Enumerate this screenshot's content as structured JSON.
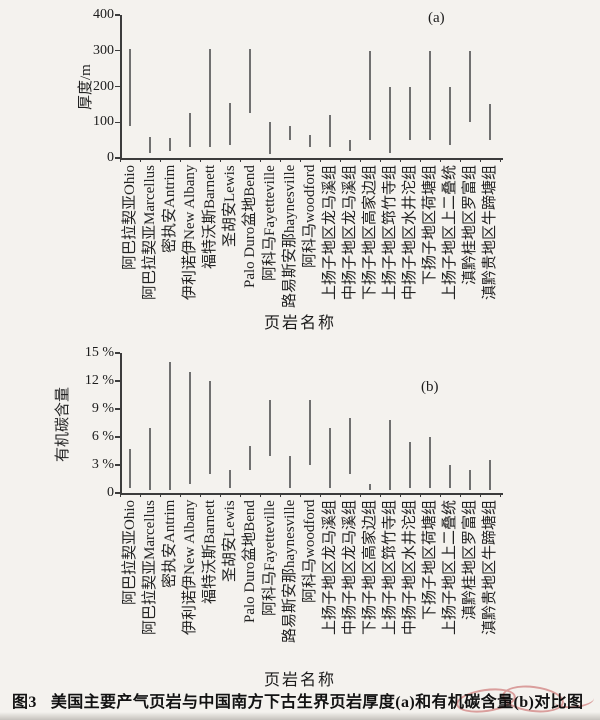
{
  "figure": {
    "caption": {
      "label": "图3",
      "text": "美国主要产气页岩与中国南方下古生界页岩厚度(a)和有机碳含量(b)对比图"
    }
  },
  "colors": {
    "bar": "#707070",
    "axis": "#3c3c3c",
    "text": "#1c1c1c",
    "background": "#f4f2ee",
    "watermark_red": "#c23b3b"
  },
  "chart_data": [
    {
      "type": "bar",
      "subtype": "floating-range-bars",
      "panel_label": "(a)",
      "ylabel": "厚度/m",
      "xlabel": "页岩名称",
      "ylim": [
        0,
        400
      ],
      "ytick_values": [
        0,
        100,
        200,
        300,
        400
      ],
      "ytick_labels": [
        "0",
        "100",
        "200",
        "300",
        "400"
      ],
      "grid": false,
      "legend": false,
      "categories": [
        "阿巴拉契亚Ohio",
        "阿巴拉契亚Marcellus",
        "密执安Antrim",
        "伊利诺伊New Albany",
        "福特沃斯Barnett",
        "圣胡安Lewis",
        "Palo Duro盆地Bend",
        "阿科马Fayetteville",
        "路易斯安那haynesville",
        "阿科马woodford",
        "上扬子地区龙马溪组",
        "中扬子地区龙马溪组",
        "下扬子地区高家边组",
        "上扬子地区筇竹寺组",
        "中扬子地区水井沱组",
        "下扬子地区荷塘组",
        "上扬子地区上二叠统",
        "滇黔桂地区罗富组",
        "滇黔贵地区牛蹄塘组"
      ],
      "ranges": [
        [
          90,
          305
        ],
        [
          15,
          60
        ],
        [
          20,
          55
        ],
        [
          30,
          125
        ],
        [
          30,
          305
        ],
        [
          35,
          155
        ],
        [
          125,
          305
        ],
        [
          10,
          100
        ],
        [
          50,
          90
        ],
        [
          30,
          65
        ],
        [
          30,
          120
        ],
        [
          20,
          50
        ],
        [
          50,
          300
        ],
        [
          15,
          200
        ],
        [
          50,
          200
        ],
        [
          50,
          300
        ],
        [
          35,
          200
        ],
        [
          100,
          300
        ],
        [
          50,
          150
        ]
      ]
    },
    {
      "type": "bar",
      "subtype": "floating-range-bars",
      "panel_label": "(b)",
      "ylabel": "有机碳含量",
      "xlabel": "页岩名称",
      "ylim": [
        0,
        15
      ],
      "ytick_values": [
        0,
        3,
        6,
        9,
        12,
        15
      ],
      "ytick_labels": [
        "0",
        "3 %",
        "6 %",
        "9 %",
        "12 %",
        "15 %"
      ],
      "grid": false,
      "legend": false,
      "categories": [
        "阿巴拉契亚Ohio",
        "阿巴拉契亚Marcellus",
        "密执安Antrim",
        "伊利诺伊New Albany",
        "福特沃斯Barnett",
        "圣胡安Lewis",
        "Palo Duro盆地Bend",
        "阿科马Fayetteville",
        "路易斯安那haynesville",
        "阿科马woodford",
        "上扬子地区龙马溪组",
        "中扬子地区龙马溪组",
        "下扬子地区高家边组",
        "上扬子地区筇竹寺组",
        "中扬子地区水井沱组",
        "下扬子地区荷塘组",
        "上扬子地区上二叠统",
        "滇黔桂地区罗富组",
        "滇黔贵地区牛蹄塘组"
      ],
      "ranges": [
        [
          0.5,
          4.7
        ],
        [
          0.3,
          7
        ],
        [
          0.3,
          14
        ],
        [
          1,
          13
        ],
        [
          2,
          12
        ],
        [
          0.5,
          2.5
        ],
        [
          2.5,
          5
        ],
        [
          4,
          10
        ],
        [
          0.5,
          4
        ],
        [
          3,
          10
        ],
        [
          0.5,
          7
        ],
        [
          2,
          8
        ],
        [
          0.3,
          1
        ],
        [
          0.3,
          7.8
        ],
        [
          0.5,
          5.5
        ],
        [
          0.5,
          6
        ],
        [
          0.5,
          3
        ],
        [
          0.3,
          2.5
        ],
        [
          0.3,
          3.5
        ]
      ]
    }
  ]
}
